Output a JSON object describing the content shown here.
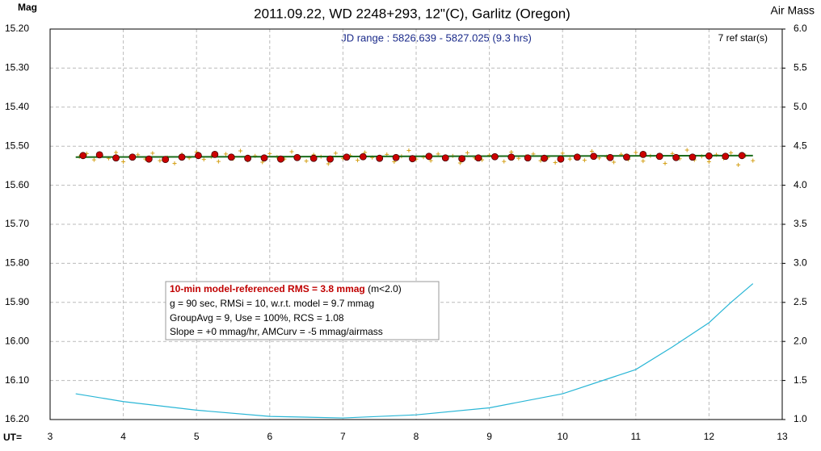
{
  "chart_data": {
    "type": "line",
    "title": "2011.09.22, WD 2248+293, 12\"(C), Garlitz (Oregon)",
    "subtitle": "JD range : 5826.639 - 5827.025 (9.3 hrs)",
    "ref_stars": "7 ref star(s)",
    "ylabel": "Mag",
    "y2label": "Air Mass",
    "xlabel": "UT=",
    "stats": {
      "headline": "10-min model-referenced RMS = 3.8 mmag",
      "headline_note": " (m<2.0)",
      "lines": [
        "g = 90 sec, RMSi = 10, w.r.t. model = 9.7 mmag",
        "GroupAvg = 9, Use = 100%, RCS = 1.08",
        "Slope = +0 mmag/hr, AMCurv = -5 mmag/airmass"
      ]
    },
    "xlim": [
      3,
      13
    ],
    "xticks": [
      3,
      4,
      5,
      6,
      7,
      8,
      9,
      10,
      11,
      12,
      13
    ],
    "ylim": [
      15.2,
      16.2
    ],
    "y_inverted": true,
    "yticks": [
      {
        "value": 15.2,
        "label": "15.20"
      },
      {
        "value": 15.3,
        "label": "15.30"
      },
      {
        "value": 15.4,
        "label": "15.40"
      },
      {
        "value": 15.5,
        "label": "15.50"
      },
      {
        "value": 15.6,
        "label": "15.60"
      },
      {
        "value": 15.7,
        "label": "15.70"
      },
      {
        "value": 15.8,
        "label": "15.80"
      },
      {
        "value": 15.9,
        "label": "15.90"
      },
      {
        "value": 16.0,
        "label": "16.00"
      },
      {
        "value": 16.1,
        "label": "16.10"
      },
      {
        "value": 16.2,
        "label": "16.20"
      }
    ],
    "y2lim": [
      1.0,
      6.0
    ],
    "y2ticks": [
      {
        "value": 6,
        "label": "6.0"
      },
      5.5,
      {
        "value": 5,
        "label": "5.0"
      },
      4.5,
      {
        "value": 4,
        "label": "4.0"
      },
      3.5,
      {
        "value": 3,
        "label": "3.0"
      },
      2.5,
      {
        "value": 2,
        "label": "2.0"
      },
      1.5,
      {
        "value": 1,
        "label": "1.0"
      }
    ],
    "grid": true,
    "series": [
      {
        "color": "#d4a017",
        "marker": "plus",
        "x": [
          3.4,
          3.5,
          3.6,
          3.7,
          3.8,
          3.9,
          4.0,
          4.1,
          4.2,
          4.3,
          4.4,
          4.5,
          4.6,
          4.7,
          4.8,
          4.9,
          5.0,
          5.1,
          5.2,
          5.3,
          5.4,
          5.5,
          5.6,
          5.7,
          5.8,
          5.9,
          6.0,
          6.1,
          6.2,
          6.3,
          6.4,
          6.5,
          6.6,
          6.7,
          6.8,
          6.9,
          7.0,
          7.1,
          7.2,
          7.3,
          7.4,
          7.5,
          7.6,
          7.7,
          7.8,
          7.9,
          8.0,
          8.1,
          8.2,
          8.3,
          8.4,
          8.5,
          8.6,
          8.7,
          8.8,
          8.9,
          9.0,
          9.1,
          9.2,
          9.3,
          9.4,
          9.5,
          9.6,
          9.7,
          9.8,
          9.9,
          10.0,
          10.1,
          10.2,
          10.3,
          10.4,
          10.5,
          10.6,
          10.7,
          10.8,
          10.9,
          11.0,
          11.1,
          11.2,
          11.3,
          11.4,
          11.5,
          11.6,
          11.7,
          11.8,
          11.9,
          12.0,
          12.1,
          12.2,
          12.3,
          12.4,
          12.5,
          12.6
        ],
        "values": [
          15.527,
          15.519,
          15.535,
          15.524,
          15.531,
          15.516,
          15.54,
          15.526,
          15.522,
          15.533,
          15.518,
          15.537,
          15.529,
          15.544,
          15.521,
          15.53,
          15.515,
          15.534,
          15.527,
          15.539,
          15.52,
          15.532,
          15.512,
          15.536,
          15.525,
          15.541,
          15.519,
          15.528,
          15.533,
          15.514,
          15.53,
          15.538,
          15.522,
          15.527,
          15.545,
          15.518,
          15.531,
          15.524,
          15.536,
          15.516,
          15.529,
          15.534,
          15.521,
          15.54,
          15.526,
          15.511,
          15.533,
          15.528,
          15.537,
          15.52,
          15.532,
          15.525,
          15.543,
          15.517,
          15.53,
          15.535,
          15.523,
          15.528,
          15.539,
          15.515,
          15.531,
          15.526,
          15.52,
          15.537,
          15.529,
          15.542,
          15.518,
          15.533,
          15.524,
          15.536,
          15.513,
          15.53,
          15.527,
          15.541,
          15.521,
          15.534,
          15.516,
          15.538,
          15.525,
          15.529,
          15.544,
          15.519,
          15.532,
          15.51,
          15.535,
          15.526,
          15.54,
          15.522,
          15.531,
          15.517,
          15.548,
          15.524,
          15.537
        ]
      },
      {
        "color": "#1a6b1a",
        "marker": "none",
        "x": [
          3.35,
          12.6
        ],
        "values": [
          15.528,
          15.524
        ]
      },
      {
        "color": "#cc0000",
        "marker": "circle",
        "x": [
          3.45,
          3.675,
          3.9,
          4.125,
          4.35,
          4.575,
          4.8,
          5.025,
          5.25,
          5.475,
          5.7,
          5.925,
          6.15,
          6.375,
          6.6,
          6.825,
          7.05,
          7.275,
          7.5,
          7.725,
          7.95,
          8.175,
          8.4,
          8.625,
          8.85,
          9.075,
          9.3,
          9.525,
          9.75,
          9.975,
          10.2,
          10.425,
          10.65,
          10.875,
          11.1,
          11.325,
          11.55,
          11.775,
          12.0,
          12.225,
          12.45
        ],
        "values": [
          15.524,
          15.522,
          15.53,
          15.528,
          15.533,
          15.534,
          15.528,
          15.524,
          15.521,
          15.528,
          15.531,
          15.53,
          15.533,
          15.529,
          15.531,
          15.533,
          15.528,
          15.527,
          15.531,
          15.529,
          15.532,
          15.526,
          15.53,
          15.532,
          15.53,
          15.527,
          15.528,
          15.53,
          15.531,
          15.533,
          15.528,
          15.526,
          15.529,
          15.528,
          15.521,
          15.526,
          15.529,
          15.528,
          15.525,
          15.526,
          15.524
        ]
      },
      {
        "color": "#29b6d6",
        "marker": "none",
        "axis": "y2",
        "x": [
          3.35,
          4,
          5,
          6,
          7,
          8,
          9,
          10,
          11,
          11.5,
          12,
          12.3,
          12.6
        ],
        "values": [
          1.33,
          1.23,
          1.12,
          1.04,
          1.02,
          1.06,
          1.15,
          1.33,
          1.64,
          1.93,
          2.24,
          2.5,
          2.74
        ]
      }
    ]
  }
}
